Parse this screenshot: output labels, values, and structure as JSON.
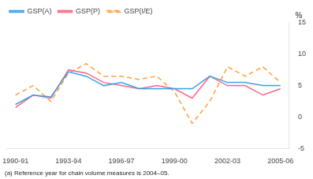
{
  "chart_data": {
    "type": "line",
    "categories": [
      "1990-91",
      null,
      null,
      "1993-94",
      null,
      null,
      "1996-97",
      null,
      null,
      "1999-00",
      null,
      null,
      "2002-03",
      null,
      null,
      "2005-06"
    ],
    "series": [
      {
        "name": "GSP(A)",
        "line_style": "solid",
        "values": [
          2.0,
          3.5,
          3.2,
          7.2,
          6.5,
          5.0,
          5.5,
          4.5,
          4.5,
          4.5,
          4.5,
          6.5,
          5.5,
          5.5,
          5.0,
          5.0
        ]
      },
      {
        "name": "GSP(P)",
        "line_style": "solid",
        "values": [
          1.5,
          3.5,
          3.0,
          7.5,
          7.0,
          5.5,
          5.0,
          4.5,
          5.0,
          4.5,
          3.0,
          6.5,
          5.0,
          5.0,
          3.5,
          4.5
        ]
      },
      {
        "name": "GSP(I/E)",
        "line_style": "dashed",
        "values": [
          3.5,
          5.0,
          2.5,
          7.0,
          8.5,
          6.5,
          6.5,
          6.0,
          6.5,
          4.0,
          -1.0,
          2.5,
          8.0,
          6.5,
          8.0,
          5.5
        ]
      }
    ],
    "ylabel": "%",
    "annotations": [
      "(a) Reference year for chain volume measures is 2004–05."
    ],
    "ylim": [
      -5,
      15
    ],
    "yticks": [
      -5,
      0,
      5,
      10,
      15
    ],
    "grid": false,
    "legend": "upper left"
  }
}
